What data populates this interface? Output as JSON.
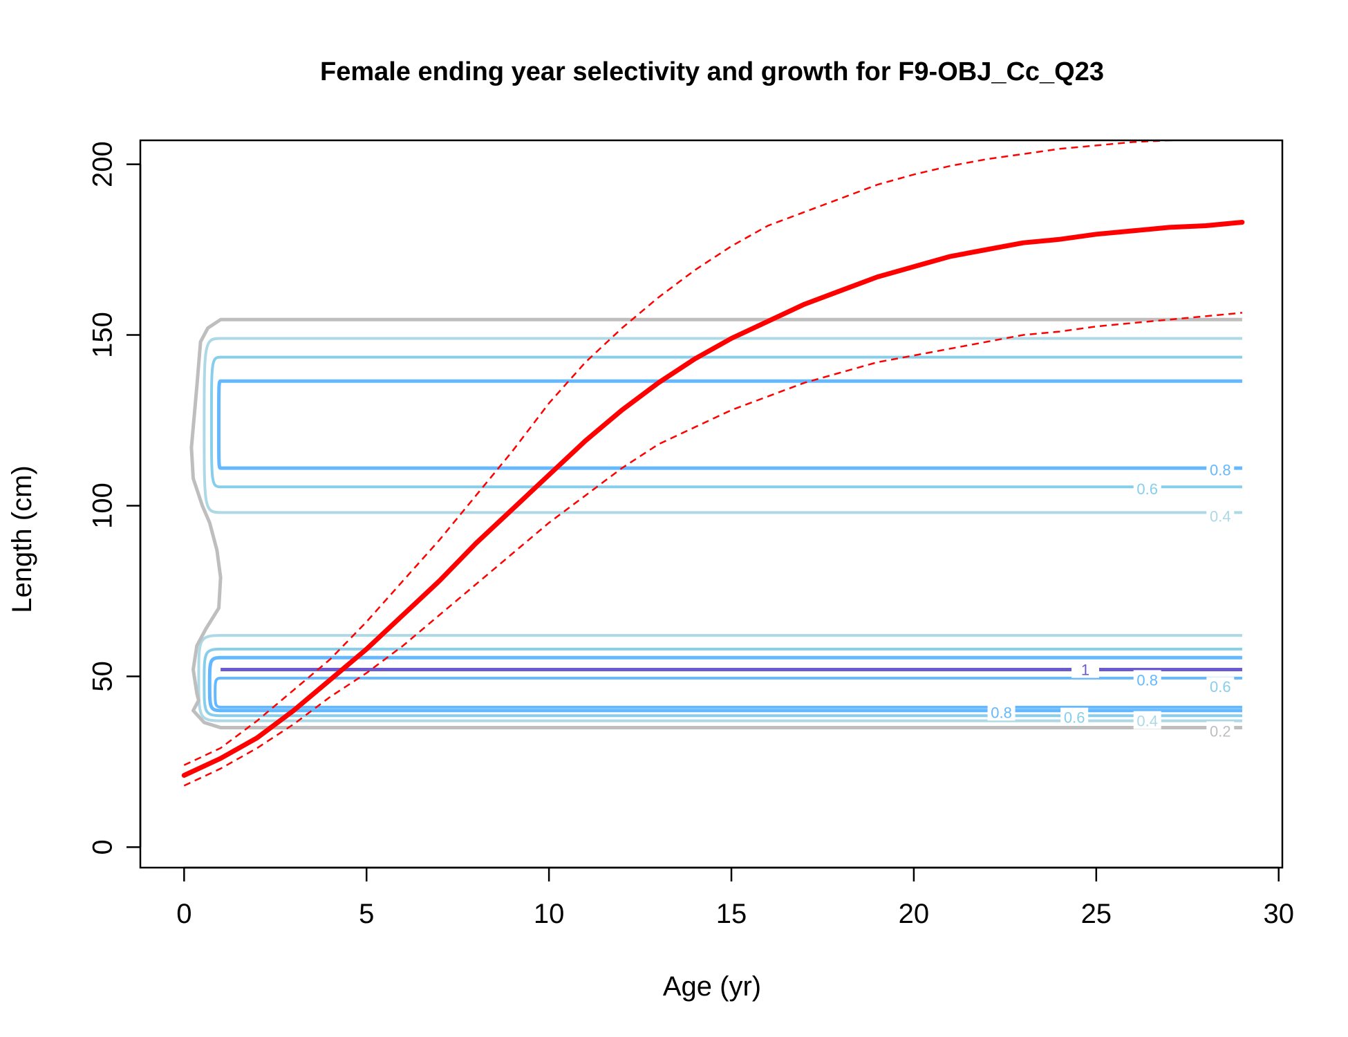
{
  "chart_data": {
    "type": "line",
    "title": "Female ending year selectivity and growth for F9-OBJ_Cc_Q23",
    "xlabel": "Age (yr)",
    "ylabel": "Length (cm)",
    "xlim": [
      -1.2,
      30.1
    ],
    "ylim": [
      -6,
      207
    ],
    "x_ticks": [
      0,
      5,
      10,
      15,
      20,
      25,
      30
    ],
    "y_ticks": [
      0,
      50,
      100,
      150,
      200
    ],
    "grid": false,
    "legend": "none",
    "growth": {
      "color": "#ff0000",
      "ages": [
        0,
        1,
        2,
        3,
        4,
        5,
        6,
        7,
        8,
        9,
        10,
        11,
        12,
        13,
        14,
        15,
        16,
        17,
        18,
        19,
        20,
        21,
        22,
        23,
        24,
        25,
        26,
        27,
        28,
        29
      ],
      "mean": [
        21,
        26,
        32,
        40,
        49,
        58,
        68,
        78,
        89,
        99,
        109,
        119,
        128,
        136,
        143,
        149,
        154,
        159,
        163,
        167,
        170,
        173,
        175,
        177,
        178,
        179.5,
        180.5,
        181.5,
        182,
        183
      ],
      "upper": [
        24,
        29,
        37,
        46,
        55,
        66,
        78,
        90,
        103,
        116,
        130,
        142,
        152,
        161,
        169,
        176,
        182,
        186,
        190,
        194,
        197,
        199.5,
        201.5,
        203,
        204.5,
        205.5,
        206.5,
        207,
        207.5,
        208
      ],
      "lower": [
        18,
        23,
        29,
        36,
        44,
        51,
        59,
        68,
        77,
        86,
        95,
        103,
        111,
        118,
        123,
        128,
        132,
        136,
        139,
        142,
        144,
        146,
        148,
        150,
        151,
        152.5,
        153.5,
        154.5,
        155.5,
        156.5
      ]
    },
    "contours": [
      {
        "level": "0.2",
        "color": "#bebebe",
        "label_pos": [
          28.4,
          34
        ]
      },
      {
        "level": "0.4",
        "color": "#add8e6",
        "label_pos": [
          28.4,
          97
        ],
        "label_pos_2": [
          26.4,
          37
        ]
      },
      {
        "level": "0.6",
        "color": "#87ceeb",
        "label_pos": [
          26.4,
          105
        ],
        "label_pos_2": [
          28.4,
          47
        ],
        "label_pos_3": [
          24.4,
          38
        ]
      },
      {
        "level": "0.8",
        "color": "#63b8ff",
        "label_pos": [
          28.4,
          110.5
        ],
        "label_pos_2": [
          26.4,
          49
        ],
        "label_pos_3": [
          22.4,
          39.5
        ]
      },
      {
        "level": "1",
        "color": "#6a5acd",
        "label_pos": [
          24.7,
          52
        ]
      }
    ]
  }
}
